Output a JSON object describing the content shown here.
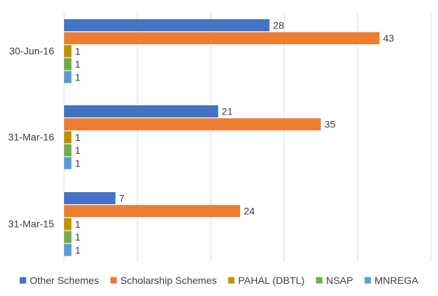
{
  "chart_data": {
    "type": "bar",
    "orientation": "horizontal",
    "title": "",
    "xlabel": "",
    "ylabel": "",
    "categories": [
      "30-Jun-16",
      "31-Mar-16",
      "31-Mar-15"
    ],
    "xlim": [
      0,
      50
    ],
    "grid": true,
    "legend_position": "bottom",
    "series": [
      {
        "name": "Other Schemes",
        "color": "#4472C4",
        "values": [
          28,
          21,
          7
        ]
      },
      {
        "name": "Scholarship Schemes",
        "color": "#ED7D31",
        "values": [
          43,
          35,
          24
        ]
      },
      {
        "name": "PAHAL (DBTL)",
        "color": "#BF9000",
        "values": [
          1,
          1,
          1
        ]
      },
      {
        "name": "NSAP",
        "color": "#70AD47",
        "values": [
          1,
          1,
          1
        ]
      },
      {
        "name": "MNREGA",
        "color": "#5B9BD5",
        "values": [
          1,
          1,
          1
        ]
      }
    ]
  }
}
